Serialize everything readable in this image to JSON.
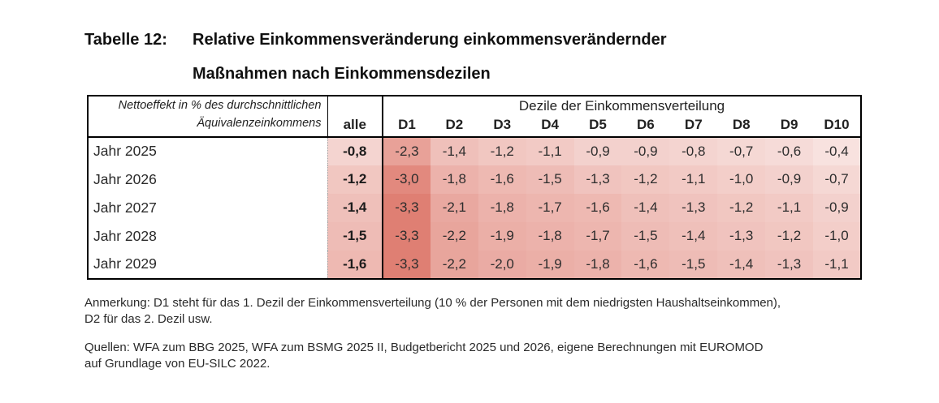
{
  "title": {
    "label": "Tabelle 12:",
    "line1": "Relative Einkommensveränderung einkommensverändernder",
    "line2": "Maßnahmen nach Einkommensdezilen"
  },
  "table": {
    "stub_header_line1": "Nettoeffekt in % des durchschnittlichen",
    "stub_header_line2": "Äquivalenzeinkommens",
    "all_col_header": "alle",
    "group_header": "Dezile der Einkommensverteilung",
    "decile_headers": [
      "D1",
      "D2",
      "D3",
      "D4",
      "D5",
      "D6",
      "D7",
      "D8",
      "D9",
      "D10"
    ],
    "rows": [
      {
        "label": "Jahr 2025",
        "alle": "-0,8",
        "values": [
          "-2,3",
          "-1,4",
          "-1,2",
          "-1,1",
          "-0,9",
          "-0,9",
          "-0,8",
          "-0,7",
          "-0,6",
          "-0,4"
        ]
      },
      {
        "label": "Jahr 2026",
        "alle": "-1,2",
        "values": [
          "-3,0",
          "-1,8",
          "-1,6",
          "-1,5",
          "-1,3",
          "-1,2",
          "-1,1",
          "-1,0",
          "-0,9",
          "-0,7"
        ]
      },
      {
        "label": "Jahr 2027",
        "alle": "-1,4",
        "values": [
          "-3,3",
          "-2,1",
          "-1,8",
          "-1,7",
          "-1,6",
          "-1,4",
          "-1,3",
          "-1,2",
          "-1,1",
          "-0,9"
        ]
      },
      {
        "label": "Jahr 2028",
        "alle": "-1,5",
        "values": [
          "-3,3",
          "-2,2",
          "-1,9",
          "-1,8",
          "-1,7",
          "-1,5",
          "-1,4",
          "-1,3",
          "-1,2",
          "-1,0"
        ]
      },
      {
        "label": "Jahr 2029",
        "alle": "-1,6",
        "values": [
          "-3,3",
          "-2,2",
          "-2,0",
          "-1,9",
          "-1,8",
          "-1,6",
          "-1,5",
          "-1,4",
          "-1,3",
          "-1,1"
        ]
      }
    ]
  },
  "heatmap": {
    "base_color": "#ffffff",
    "full_color": "#df7f73",
    "max_abs": 3.3,
    "min_t": 0.12
  },
  "notes": {
    "anmerkung_line1": "Anmerkung: D1 steht für das 1. Dezil der Einkommensverteilung (10 % der Personen mit dem niedrigsten Haushaltseinkommen),",
    "anmerkung_line2": "D2 für das 2. Dezil usw.",
    "quellen_line1": "Quellen: WFA zum BBG 2025, WFA zum BSMG 2025 II, Budgetbericht 2025 und 2026, eigene Berechnungen mit EUROMOD",
    "quellen_line2": "auf Grundlage von EU-SILC 2022."
  }
}
